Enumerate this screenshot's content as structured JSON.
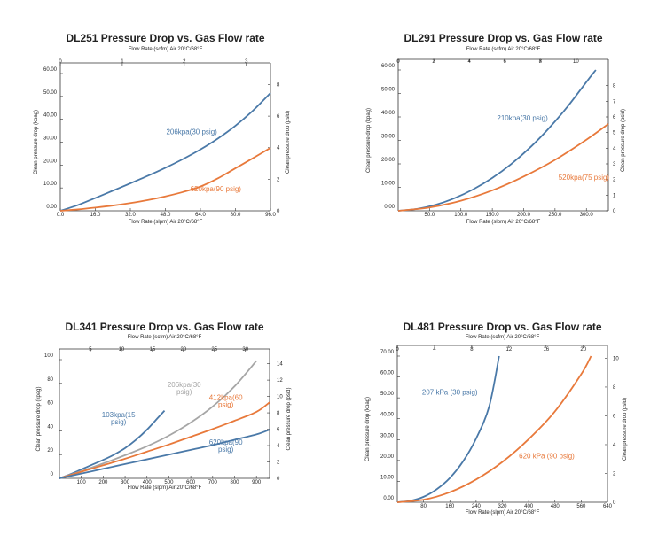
{
  "chart_data": [
    {
      "id": "p1",
      "type": "line",
      "title": "DL251 Pressure Drop vs. Gas Flow rate",
      "xlabel": "Flow Rate (slpm) Air 20°C/68°F",
      "x2label": "Flow Rate (scfm) Air 20°C/68°F",
      "ylabel": "Clean pressure drop (kpag)",
      "y2label": "Clean pressure drop (psid)",
      "xlim": [
        0,
        96
      ],
      "ylim": [
        0,
        60
      ],
      "x2lim": [
        0,
        3.39
      ],
      "y2lim": [
        0,
        8.7
      ],
      "xticks": [
        0,
        16,
        32,
        48,
        64,
        80,
        96
      ],
      "xtick_labels": [
        "0.0",
        "16.0",
        "32.0",
        "48.0",
        "64.0",
        "80.0",
        "96.0"
      ],
      "yticks": [
        0,
        10,
        20,
        30,
        40,
        50,
        60
      ],
      "ytick_labels": [
        "0.00",
        "10.00",
        "20.00",
        "30.00",
        "40.00",
        "50.00",
        "60.00"
      ],
      "x2ticks": [
        0,
        1,
        2,
        3
      ],
      "x2tick_labels": [
        "0",
        "1",
        "2",
        "3"
      ],
      "y2ticks": [
        0,
        2,
        4,
        6,
        8
      ],
      "y2tick_labels": [
        "0",
        "2",
        "4",
        "6",
        "8"
      ],
      "series": [
        {
          "name": "206kpa(30 psig)",
          "color": "#4a79a8",
          "x": [
            0,
            8,
            16,
            24,
            32,
            40,
            48,
            56,
            64,
            72,
            80,
            88,
            96
          ],
          "y": [
            0,
            2.5,
            5.6,
            8.8,
            12.0,
            15.3,
            18.8,
            22.6,
            26.8,
            31.6,
            37.2,
            43.8,
            51.5
          ]
        },
        {
          "name": "620kpa(90 psig)",
          "color": "#e8793b",
          "x": [
            0,
            8,
            16,
            24,
            32,
            40,
            48,
            56,
            64,
            72,
            80,
            88,
            96
          ],
          "y": [
            0,
            0.6,
            1.4,
            2.3,
            3.4,
            4.7,
            6.3,
            8.2,
            10.6,
            14.2,
            18.6,
            23.0,
            27.5
          ]
        }
      ],
      "annotations": [
        {
          "text": "206kpa(30 psig)",
          "color": "#4a79a8",
          "x": 60,
          "y": 33.5
        },
        {
          "text": "620kpa(90 psig)",
          "color": "#e8793b",
          "x": 71,
          "y": 8.5
        }
      ]
    },
    {
      "id": "p2",
      "type": "line",
      "title": "DL291 Pressure Drop vs. Gas Flow rate",
      "xlabel": "Flow Rate (slpm) Air 20°C/68°F",
      "x2label": "Flow Rate (scfm) Air 20°C/68°F",
      "ylabel": "Clean pressure drop (kpag)",
      "y2label": "Clean pressure drop (psid)",
      "xlim": [
        0,
        335
      ],
      "ylim": [
        0,
        60
      ],
      "x2lim": [
        0,
        11.83
      ],
      "y2lim": [
        0,
        9.0
      ],
      "xticks": [
        50,
        100,
        150,
        200,
        250,
        300
      ],
      "xtick_labels": [
        "50.0",
        "100.0",
        "150.0",
        "200.0",
        "250.0",
        "300.0"
      ],
      "yticks": [
        0,
        10,
        20,
        30,
        40,
        50,
        60
      ],
      "ytick_labels": [
        "0.00",
        "10.00",
        "20.00",
        "30.00",
        "40.00",
        "50.00",
        "60.00"
      ],
      "x2ticks": [
        0,
        2,
        4,
        6,
        8,
        10
      ],
      "x2tick_labels": [
        "0",
        "2",
        "4",
        "6",
        "8",
        "10"
      ],
      "y2ticks": [
        0,
        1,
        2,
        3,
        4,
        5,
        6,
        7,
        8
      ],
      "y2tick_labels": [
        "0",
        "1",
        "2",
        "3",
        "4",
        "5",
        "6",
        "7",
        "8"
      ],
      "series": [
        {
          "name": "210kpa(30 psig)",
          "color": "#4a79a8",
          "x": [
            0,
            30,
            60,
            90,
            120,
            150,
            180,
            210,
            240,
            270,
            300,
            315
          ],
          "y": [
            0,
            0.8,
            2.6,
            5.4,
            9.2,
            14.0,
            19.9,
            26.9,
            35.1,
            44.4,
            54.9,
            60.0
          ]
        },
        {
          "name": "520kpa(75 psig)",
          "color": "#e8793b",
          "x": [
            0,
            50,
            100,
            150,
            200,
            250,
            300,
            335
          ],
          "y": [
            0,
            1.4,
            4.3,
            8.7,
            14.6,
            21.7,
            30.3,
            37.0
          ]
        }
      ],
      "annotations": [
        {
          "text": "210kpa(30 psig)",
          "color": "#4a79a8",
          "x": 198,
          "y": 38.5
        },
        {
          "text": "520kpa(75 psig)",
          "color": "#e8793b",
          "x": 296,
          "y": 13.3
        }
      ]
    },
    {
      "id": "p3",
      "type": "line",
      "title": "DL341 Pressure Drop vs. Gas Flow rate",
      "xlabel": "Flow Rate (slpm) Air 20°C/68°F",
      "x2label": "Flow Rate (scfm) Air 20°C/68°F",
      "ylabel": "Clean pressure drop (kpag)",
      "y2label": "Clean pressure drop (psid)",
      "xlim": [
        0,
        960
      ],
      "ylim": [
        0,
        100
      ],
      "x2lim": [
        0,
        33.9
      ],
      "y2lim": [
        0,
        14.5
      ],
      "xticks": [
        100,
        200,
        300,
        400,
        500,
        600,
        700,
        800,
        900
      ],
      "xtick_labels": [
        "100",
        "200",
        "300",
        "400",
        "500",
        "600",
        "700",
        "800",
        "900"
      ],
      "yticks": [
        0,
        20,
        40,
        60,
        80,
        100
      ],
      "ytick_labels": [
        "0",
        "20",
        "40",
        "60",
        "80",
        "100"
      ],
      "x2ticks": [
        5,
        10,
        15,
        20,
        25,
        30
      ],
      "x2tick_labels": [
        "5",
        "10",
        "15",
        "20",
        "25",
        "30"
      ],
      "y2ticks": [
        0,
        2,
        4,
        6,
        8,
        10,
        12,
        14
      ],
      "y2tick_labels": [
        "0",
        "2",
        "4",
        "6",
        "8",
        "10",
        "12",
        "14"
      ],
      "series": [
        {
          "name": "103kpa(15 psig)",
          "color": "#4a79a8",
          "x": [
            0,
            50,
            100,
            150,
            200,
            250,
            300,
            350,
            400,
            450,
            480
          ],
          "y": [
            0,
            3.5,
            7.5,
            11.5,
            15.5,
            20.0,
            25.5,
            32.5,
            41.0,
            51.0,
            57.0
          ]
        },
        {
          "name": "206kpa(30 psig)",
          "color": "#a6a6a6",
          "x": [
            0,
            100,
            200,
            300,
            400,
            500,
            600,
            700,
            800,
            900
          ],
          "y": [
            0,
            6.0,
            12.5,
            19.5,
            27.0,
            36.0,
            47.0,
            60.5,
            77.5,
            99.0
          ]
        },
        {
          "name": "412kpa(60 psig)",
          "color": "#e8793b",
          "x": [
            0,
            100,
            200,
            300,
            400,
            500,
            600,
            700,
            800,
            900,
            960
          ],
          "y": [
            0,
            5.5,
            11.0,
            16.5,
            22.5,
            28.5,
            35.0,
            41.5,
            48.5,
            56.0,
            64.0
          ]
        },
        {
          "name": "620kpa(90 psig)",
          "color": "#4a79a8",
          "x": [
            0,
            100,
            200,
            300,
            400,
            500,
            600,
            700,
            800,
            900,
            960
          ],
          "y": [
            0,
            4.0,
            8.0,
            12.0,
            16.0,
            20.0,
            24.0,
            28.0,
            32.5,
            37.0,
            41.0
          ]
        }
      ],
      "annotations": [
        {
          "text": "103kpa(15",
          "color": "#4a79a8",
          "x": 270,
          "y": 51.5
        },
        {
          "text": "psig)",
          "color": "#4a79a8",
          "x": 270,
          "y": 45.5
        },
        {
          "text": "206kpa(30",
          "color": "#a6a6a6",
          "x": 570,
          "y": 77
        },
        {
          "text": "psig)",
          "color": "#a6a6a6",
          "x": 570,
          "y": 71
        },
        {
          "text": "412kpa(60",
          "color": "#e8793b",
          "x": 760,
          "y": 66
        },
        {
          "text": "psig)",
          "color": "#e8793b",
          "x": 760,
          "y": 60
        },
        {
          "text": "620kpa(90",
          "color": "#4a79a8",
          "x": 760,
          "y": 28.5
        },
        {
          "text": "psig)",
          "color": "#4a79a8",
          "x": 760,
          "y": 22.5
        }
      ]
    },
    {
      "id": "p4",
      "type": "line",
      "title": "DL481 Pressure Drop vs. Gas Flow rate",
      "xlabel": "Flow Rate (slpm) Air 20°C/68°F",
      "x2label": "Flow Rate (scfm) Air 20°C/68°F",
      "ylabel": "Clean pressure drop (kpag)",
      "y2label": "Clean pressure drop (psid)",
      "xlim": [
        0,
        640
      ],
      "ylim": [
        0,
        70
      ],
      "x2lim": [
        0,
        22.6
      ],
      "y2lim": [
        0,
        10.15
      ],
      "xticks": [
        80,
        160,
        240,
        320,
        400,
        480,
        560,
        640
      ],
      "xtick_labels": [
        "80",
        "160",
        "240",
        "320",
        "400",
        "480",
        "560",
        "640"
      ],
      "yticks": [
        0,
        10,
        20,
        30,
        40,
        50,
        60,
        70
      ],
      "ytick_labels": [
        "0.00",
        "10.00",
        "20.00",
        "30.00",
        "40.00",
        "50.00",
        "60.00",
        "70.00"
      ],
      "x2ticks": [
        0,
        4,
        8,
        12,
        16,
        20
      ],
      "x2tick_labels": [
        "0",
        "4",
        "8",
        "12",
        "16",
        "20"
      ],
      "y2ticks": [
        0,
        2,
        4,
        6,
        8,
        10
      ],
      "y2tick_labels": [
        "0",
        "2",
        "4",
        "6",
        "8",
        "10"
      ],
      "series": [
        {
          "name": "207 kPa (30 psig)",
          "color": "#4a79a8",
          "x": [
            0,
            40,
            80,
            120,
            160,
            200,
            240,
            280,
            310
          ],
          "y": [
            0,
            0.7,
            2.6,
            6.2,
            11.6,
            19.5,
            30.5,
            46.0,
            70.0
          ]
        },
        {
          "name": "620 kPa (90 psig)",
          "color": "#e8793b",
          "x": [
            0,
            80,
            160,
            240,
            320,
            400,
            480,
            560,
            590
          ],
          "y": [
            0,
            1.2,
            4.8,
            10.9,
            19.3,
            30.2,
            43.5,
            61.3,
            70.0
          ]
        }
      ],
      "annotations": [
        {
          "text": "207 kPa (30 psig)",
          "color": "#4a79a8",
          "x": 160,
          "y": 51.5
        },
        {
          "text": "620 kPa (90 psig)",
          "color": "#e8793b",
          "x": 455,
          "y": 21
        }
      ]
    }
  ]
}
